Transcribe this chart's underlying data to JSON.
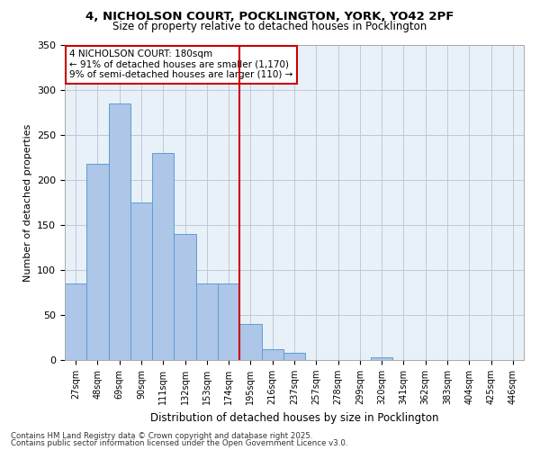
{
  "title1": "4, NICHOLSON COURT, POCKLINGTON, YORK, YO42 2PF",
  "title2": "Size of property relative to detached houses in Pocklington",
  "xlabel": "Distribution of detached houses by size in Pocklington",
  "ylabel": "Number of detached properties",
  "bins": [
    "27sqm",
    "48sqm",
    "69sqm",
    "90sqm",
    "111sqm",
    "132sqm",
    "153sqm",
    "174sqm",
    "195sqm",
    "216sqm",
    "237sqm",
    "257sqm",
    "278sqm",
    "299sqm",
    "320sqm",
    "341sqm",
    "362sqm",
    "383sqm",
    "404sqm",
    "425sqm",
    "446sqm"
  ],
  "bar_values": [
    85,
    218,
    285,
    175,
    230,
    140,
    85,
    85,
    40,
    12,
    8,
    0,
    0,
    0,
    3,
    0,
    0,
    0,
    0,
    0,
    0
  ],
  "bar_color": "#aec6e8",
  "bar_edge_color": "#5a9fd4",
  "annotation_title": "4 NICHOLSON COURT: 180sqm",
  "annotation_line1": "← 91% of detached houses are smaller (1,170)",
  "annotation_line2": "9% of semi-detached houses are larger (110) →",
  "annotation_box_color": "#ffffff",
  "annotation_box_edge": "#cc0000",
  "vline_color": "#cc0000",
  "footer1": "Contains HM Land Registry data © Crown copyright and database right 2025.",
  "footer2": "Contains public sector information licensed under the Open Government Licence v3.0.",
  "bg_color": "#e8f0f8",
  "ylim": [
    0,
    350
  ],
  "yticks": [
    0,
    50,
    100,
    150,
    200,
    250,
    300,
    350
  ]
}
